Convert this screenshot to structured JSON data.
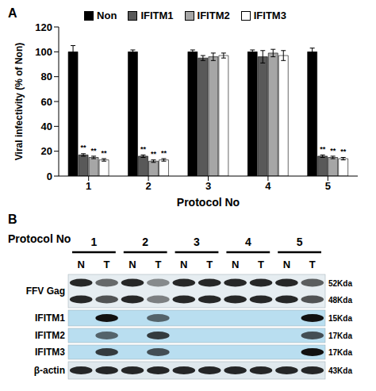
{
  "chart_data": {
    "type": "bar",
    "title": "A",
    "x_label": "Protocol No",
    "y_label": "Viral infectivity (% of Non)",
    "categories": [
      "1",
      "2",
      "3",
      "4",
      "5"
    ],
    "series": [
      {
        "name": "Non",
        "color": "#000000",
        "values": [
          100,
          100,
          100,
          100,
          100
        ],
        "errors": [
          5,
          1.5,
          1.5,
          1.5,
          3
        ]
      },
      {
        "name": "IFITM1",
        "color": "#595959",
        "values": [
          17,
          16,
          95,
          96,
          16
        ],
        "errors": [
          1,
          1,
          2,
          5,
          1
        ],
        "significance": [
          "**",
          "**",
          null,
          null,
          "**"
        ]
      },
      {
        "name": "IFITM2",
        "color": "#a6a6a6",
        "values": [
          15,
          12,
          96,
          99,
          15
        ],
        "errors": [
          1,
          1,
          3,
          3,
          1
        ],
        "significance": [
          "**",
          "**",
          null,
          null,
          "**"
        ]
      },
      {
        "name": "IFITM3",
        "color": "#ffffff",
        "values": [
          13,
          13,
          97,
          97,
          14
        ],
        "errors": [
          1,
          1,
          2,
          4,
          1
        ],
        "significance": [
          "**",
          "**",
          null,
          null,
          "**"
        ]
      }
    ],
    "ylim": [
      0,
      120
    ],
    "yticks": [
      0,
      20,
      40,
      60,
      80,
      100,
      120
    ],
    "grid": false,
    "legend": "top"
  },
  "blot": {
    "label": "B",
    "x_label": "Protocol No",
    "groups": [
      "1",
      "2",
      "3",
      "4",
      "5"
    ],
    "lanes": [
      "N",
      "T"
    ],
    "rows": [
      {
        "name": "FFV Gag",
        "bands": [
          {
            "size": "52Kda",
            "intensity": [
              0.9,
              0.6,
              0.9,
              0.45,
              0.9,
              0.9,
              0.9,
              0.9,
              0.9,
              0.65
            ]
          },
          {
            "size": "48Kda",
            "intensity": [
              0.9,
              0.7,
              0.9,
              0.5,
              0.9,
              0.9,
              0.9,
              0.9,
              0.9,
              0.7
            ]
          }
        ]
      },
      {
        "name": "IFITM1",
        "bands": [
          {
            "size": "15Kda",
            "intensity": [
              0,
              1,
              0,
              0.6,
              0,
              0,
              0,
              0,
              0,
              1
            ]
          }
        ]
      },
      {
        "name": "IFITM2",
        "bands": [
          {
            "size": "17Kda",
            "intensity": [
              0,
              0.6,
              0,
              0.8,
              0,
              0,
              0,
              0,
              0,
              0.7
            ]
          }
        ]
      },
      {
        "name": "IFITM3",
        "bands": [
          {
            "size": "17Kda",
            "intensity": [
              0,
              0.8,
              0,
              0.7,
              0,
              0,
              0,
              0,
              0,
              1
            ]
          }
        ]
      },
      {
        "name": "β-actin",
        "bands": [
          {
            "size": "43Kda",
            "intensity": [
              0.9,
              0.9,
              0.9,
              0.9,
              0.9,
              0.9,
              0.9,
              0.9,
              0.9,
              0.9
            ]
          }
        ]
      }
    ]
  }
}
